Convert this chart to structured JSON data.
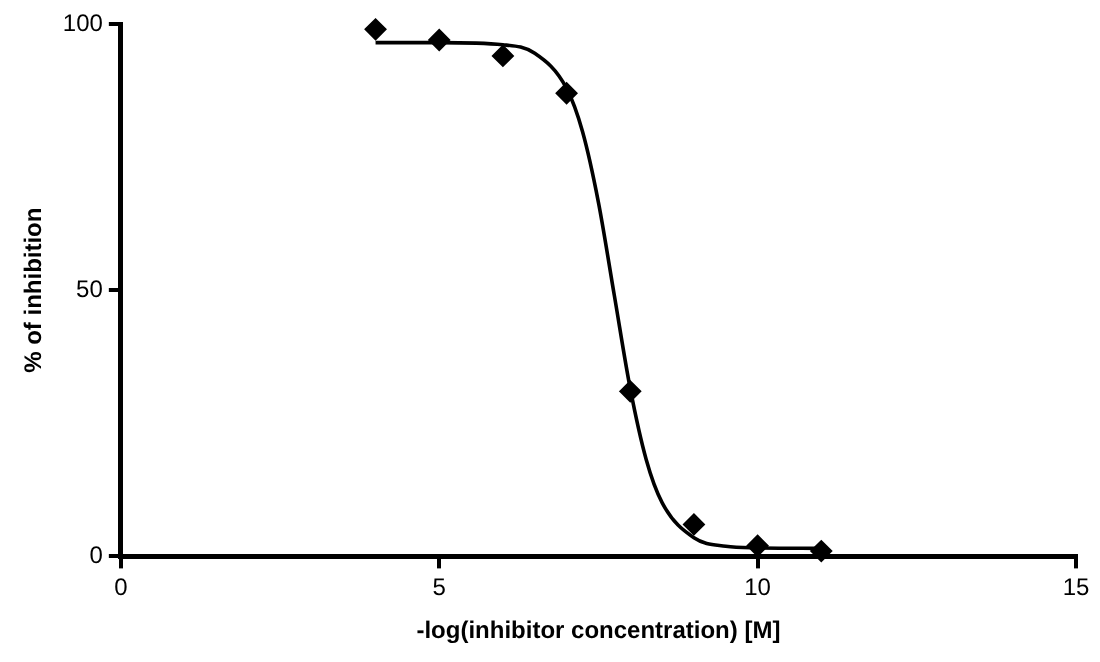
{
  "chart_data": {
    "type": "scatter",
    "xlabel": "-log(inhibitor concentration) [M]",
    "ylabel": "% of inhibition",
    "xlim": [
      0,
      15
    ],
    "xticks": [
      0,
      5,
      10,
      15
    ],
    "ylim": [
      0,
      100
    ],
    "yticks": [
      0,
      50,
      100
    ],
    "grid": false,
    "legend": false,
    "series": [
      {
        "color": "#000000",
        "marker": "diamond",
        "x": [
          4,
          5,
          6,
          7,
          8,
          9,
          10,
          11
        ],
        "values": [
          99,
          97,
          94,
          87,
          31,
          6,
          2,
          1
        ]
      },
      {
        "type": "line",
        "color": "#000000",
        "marker": "none",
        "line_style": "solid",
        "x": [
          4,
          5,
          6,
          6.5,
          7,
          7.25,
          7.5,
          7.75,
          8,
          8.25,
          8.5,
          9,
          9.5,
          10,
          11
        ],
        "values": [
          96.5,
          96.5,
          96.1,
          94.5,
          87.9,
          79.8,
          66.5,
          49,
          31.5,
          18.2,
          10.1,
          3.5,
          1.9,
          1.6,
          1.5
        ]
      }
    ]
  }
}
